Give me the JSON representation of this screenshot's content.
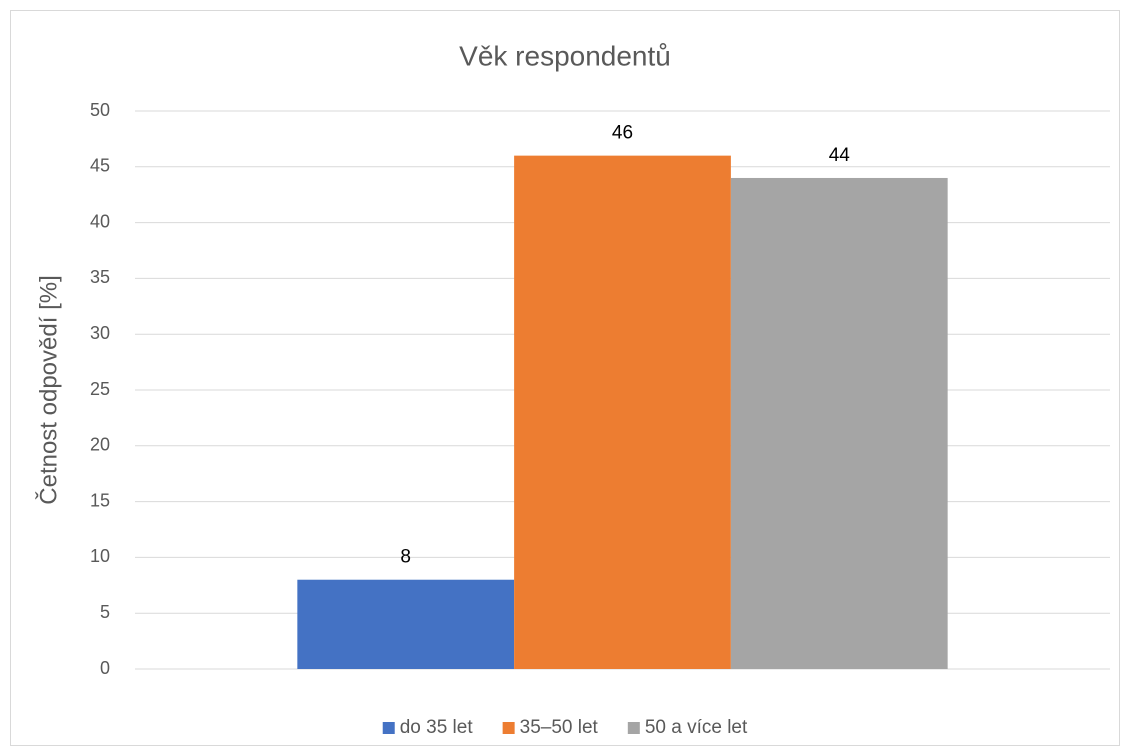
{
  "chart_data": {
    "type": "bar",
    "title": "Věk respondentů",
    "y_label": "Četnost odpovědí [%]",
    "categories": [
      null
    ],
    "series": [
      {
        "name": "do 35 let",
        "color": "#4472c4",
        "values": [
          8
        ]
      },
      {
        "name": "35–50 let",
        "color": "#ed7d31",
        "values": [
          46
        ]
      },
      {
        "name": "50 a více let",
        "color": "#a5a5a5",
        "values": [
          44
        ]
      }
    ],
    "ylim": [
      0,
      50
    ],
    "yticks": [
      0,
      5,
      10,
      15,
      20,
      25,
      30,
      35,
      40,
      45,
      50
    ],
    "grid": true,
    "legend": "bottom",
    "data_labels": true
  }
}
